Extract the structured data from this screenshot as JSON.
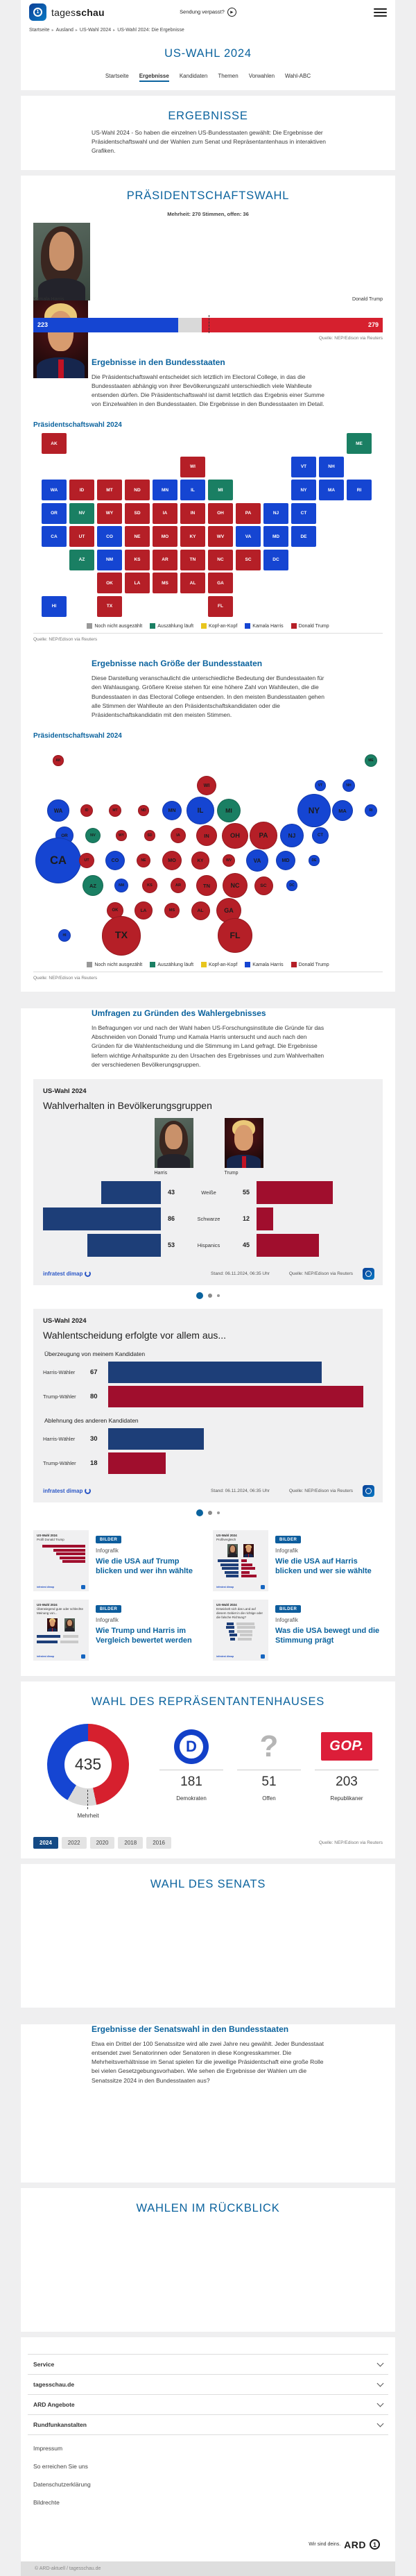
{
  "colors": {
    "accent_blue": "#0b639e",
    "dem": "#1545d2",
    "rep_map": "#b51f27",
    "rep_bright": "#d6202e",
    "open_gray": "#d9d9d9",
    "counting_green": "#1a7f63",
    "tossup_yellow": "#e8c51d",
    "legend_gray": "#999999",
    "info_dem": "#1d3e78",
    "info_rep": "#a00e2d",
    "thumb_gray": "#c9c9c9"
  },
  "header": {
    "brand_regular": "tages",
    "brand_bold": "schau",
    "missed_show": "Sendung verpasst?",
    "breadcrumb": [
      "Startseite",
      "Ausland",
      "US-Wahl 2024",
      "US-Wahl 2024: Die Ergebnisse"
    ],
    "page_title": "US-WAHL 2024",
    "tabs": [
      {
        "label": "Startseite",
        "active": false
      },
      {
        "label": "Ergebnisse",
        "active": true
      },
      {
        "label": "Kandidaten",
        "active": false
      },
      {
        "label": "Themen",
        "active": false
      },
      {
        "label": "Vorwahlen",
        "active": false
      },
      {
        "label": "Wahl-ABC",
        "active": false
      }
    ]
  },
  "ergebnisse": {
    "title": "ERGEBNISSE",
    "intro": "US-Wahl 2024 - So haben die einzelnen US-Bundesstaaten gewählt: Die Ergebnisse der Präsidentschaftswahl und der Wahlen zum Senat und Repräsentantenhaus in interaktiven Grafiken."
  },
  "praesidentschaft": {
    "title": "PRÄSIDENTSCHAFTSWAHL",
    "majority_note": "Mehrheit: 270 Stimmen, offen: 36",
    "total": 538,
    "majority": 270,
    "open": 36,
    "harris": {
      "name": "Kamala Harris",
      "votes": 223
    },
    "trump": {
      "name": "Donald Trump",
      "votes": 279
    },
    "source": "Quelle: NEP/Edison via Reuters",
    "states_heading": "Ergebnisse in den Bundesstaaten",
    "states_text": "Die Präsidentschaftswahl entscheidet sich letztlich im Electoral College, in das die Bundesstaaten abhängig von ihrer Bevölkerungszahl unterschiedlich viele Wahlleute entsenden dürfen. Die Präsidentschaftswahl ist damit letztlich das Ergebnis einer Summe von Einzelwahlen in den Bundesstaaten. Die Ergebnisse in den Bundesstaaten im Detail.",
    "map_title": "Präsidentschaftswahl 2024",
    "size_heading": "Ergebnisse nach Größe der Bundesstaaten",
    "size_text": "Diese Darstellung veranschaulicht die unterschiedliche Bedeutung der Bundesstaaten für den Wahlausgang. Größere Kreise stehen für eine höhere Zahl von Wahlleuten, die die Bundesstaaten in das Electoral College entsenden. In den meisten Bundesstaaten gehen alle Stimmen der Wahlleute an den Präsidentschaftskandidaten oder die Präsidentschaftskandidatin mit den meisten Stimmen.",
    "bubble_title": "Präsidentschaftswahl 2024",
    "legend": [
      {
        "label": "Noch nicht ausgezählt",
        "key": "legend_gray"
      },
      {
        "label": "Auszählung läuft",
        "key": "counting_green"
      },
      {
        "label": "Kopf-an-Kopf",
        "key": "tossup_yellow"
      },
      {
        "label": "Kamala Harris",
        "key": "dem"
      },
      {
        "label": "Donald Trump",
        "key": "rep_map"
      }
    ]
  },
  "states": [
    {
      "abbr": "AK",
      "ev": 3,
      "w": "rep",
      "c": 0,
      "r": 0
    },
    {
      "abbr": "ME",
      "ev": 4,
      "w": "count",
      "c": 11,
      "r": 0
    },
    {
      "abbr": "WI",
      "ev": 10,
      "w": "rep",
      "c": 5,
      "r": 1
    },
    {
      "abbr": "VT",
      "ev": 3,
      "w": "dem",
      "c": 9,
      "r": 1
    },
    {
      "abbr": "NH",
      "ev": 4,
      "w": "dem",
      "c": 10,
      "r": 1
    },
    {
      "abbr": "WA",
      "ev": 12,
      "w": "dem",
      "c": 0,
      "r": 2
    },
    {
      "abbr": "ID",
      "ev": 4,
      "w": "rep",
      "c": 1,
      "r": 2
    },
    {
      "abbr": "MT",
      "ev": 4,
      "w": "rep",
      "c": 2,
      "r": 2
    },
    {
      "abbr": "ND",
      "ev": 3,
      "w": "rep",
      "c": 3,
      "r": 2
    },
    {
      "abbr": "MN",
      "ev": 10,
      "w": "dem",
      "c": 4,
      "r": 2
    },
    {
      "abbr": "IL",
      "ev": 19,
      "w": "dem",
      "c": 5,
      "r": 2
    },
    {
      "abbr": "MI",
      "ev": 15,
      "w": "count",
      "c": 6,
      "r": 2
    },
    {
      "abbr": "NY",
      "ev": 28,
      "w": "dem",
      "c": 9,
      "r": 2
    },
    {
      "abbr": "MA",
      "ev": 11,
      "w": "dem",
      "c": 10,
      "r": 2
    },
    {
      "abbr": "RI",
      "ev": 4,
      "w": "dem",
      "c": 11,
      "r": 2
    },
    {
      "abbr": "OR",
      "ev": 8,
      "w": "dem",
      "c": 0,
      "r": 3
    },
    {
      "abbr": "NV",
      "ev": 6,
      "w": "count",
      "c": 1,
      "r": 3
    },
    {
      "abbr": "WY",
      "ev": 3,
      "w": "rep",
      "c": 2,
      "r": 3
    },
    {
      "abbr": "SD",
      "ev": 3,
      "w": "rep",
      "c": 3,
      "r": 3
    },
    {
      "abbr": "IA",
      "ev": 6,
      "w": "rep",
      "c": 4,
      "r": 3
    },
    {
      "abbr": "IN",
      "ev": 11,
      "w": "rep",
      "c": 5,
      "r": 3
    },
    {
      "abbr": "OH",
      "ev": 17,
      "w": "rep",
      "c": 6,
      "r": 3
    },
    {
      "abbr": "PA",
      "ev": 19,
      "w": "rep",
      "c": 7,
      "r": 3
    },
    {
      "abbr": "NJ",
      "ev": 14,
      "w": "dem",
      "c": 8,
      "r": 3
    },
    {
      "abbr": "CT",
      "ev": 7,
      "w": "dem",
      "c": 9,
      "r": 3
    },
    {
      "abbr": "CA",
      "ev": 54,
      "w": "dem",
      "c": 0,
      "r": 4
    },
    {
      "abbr": "UT",
      "ev": 6,
      "w": "rep",
      "c": 1,
      "r": 4
    },
    {
      "abbr": "CO",
      "ev": 10,
      "w": "dem",
      "c": 2,
      "r": 4
    },
    {
      "abbr": "NE",
      "ev": 5,
      "w": "rep",
      "c": 3,
      "r": 4
    },
    {
      "abbr": "MO",
      "ev": 10,
      "w": "rep",
      "c": 4,
      "r": 4
    },
    {
      "abbr": "KY",
      "ev": 8,
      "w": "rep",
      "c": 5,
      "r": 4
    },
    {
      "abbr": "WV",
      "ev": 4,
      "w": "rep",
      "c": 6,
      "r": 4
    },
    {
      "abbr": "VA",
      "ev": 13,
      "w": "dem",
      "c": 7,
      "r": 4
    },
    {
      "abbr": "MD",
      "ev": 10,
      "w": "dem",
      "c": 8,
      "r": 4
    },
    {
      "abbr": "DE",
      "ev": 3,
      "w": "dem",
      "c": 9,
      "r": 4
    },
    {
      "abbr": "AZ",
      "ev": 11,
      "w": "count",
      "c": 1,
      "r": 5
    },
    {
      "abbr": "NM",
      "ev": 5,
      "w": "dem",
      "c": 2,
      "r": 5
    },
    {
      "abbr": "KS",
      "ev": 6,
      "w": "rep",
      "c": 3,
      "r": 5
    },
    {
      "abbr": "AR",
      "ev": 6,
      "w": "rep",
      "c": 4,
      "r": 5
    },
    {
      "abbr": "TN",
      "ev": 11,
      "w": "rep",
      "c": 5,
      "r": 5
    },
    {
      "abbr": "NC",
      "ev": 16,
      "w": "rep",
      "c": 6,
      "r": 5
    },
    {
      "abbr": "SC",
      "ev": 9,
      "w": "rep",
      "c": 7,
      "r": 5
    },
    {
      "abbr": "DC",
      "ev": 3,
      "w": "dem",
      "c": 8,
      "r": 5
    },
    {
      "abbr": "OK",
      "ev": 7,
      "w": "rep",
      "c": 2,
      "r": 6
    },
    {
      "abbr": "LA",
      "ev": 8,
      "w": "rep",
      "c": 3,
      "r": 6
    },
    {
      "abbr": "MS",
      "ev": 6,
      "w": "rep",
      "c": 4,
      "r": 6
    },
    {
      "abbr": "AL",
      "ev": 9,
      "w": "rep",
      "c": 5,
      "r": 6
    },
    {
      "abbr": "GA",
      "ev": 16,
      "w": "rep",
      "c": 6,
      "r": 6
    },
    {
      "abbr": "HI",
      "ev": 4,
      "w": "dem",
      "c": 0,
      "r": 7
    },
    {
      "abbr": "TX",
      "ev": 40,
      "w": "rep",
      "c": 2,
      "r": 7
    },
    {
      "abbr": "FL",
      "ev": 30,
      "w": "rep",
      "c": 6,
      "r": 7
    }
  ],
  "umfragen": {
    "heading": "Umfragen zu Gründen des Wahlergebnisses",
    "text": "In Befragungen vor und nach der Wahl haben US-Forschungsinstitute die Gründe für das Abschneiden von Donald Trump und Kamala Harris untersucht und auch nach den Gründen für die Wahlentscheidung und die Stimmung im Land gefragt. Die Ergebnisse liefern wichtige Anhaltspunkte zu den Ursachen des Ergebnisses und zum Wahlverhalten der verschiedenen Bevölkerungsgruppen."
  },
  "infographics": {
    "footer": {
      "brand": "infratest dimap",
      "stand": "Stand:  06.11.2024, 06:35 Uhr",
      "source": "Quelle: NEP/Edison via Reuters"
    },
    "card1": {
      "kicker": "US-Wahl 2024",
      "title": "Wahlverhalten in Bevölkerungsgruppen",
      "harris_label": "Harris",
      "trump_label": "Trump",
      "rows": [
        {
          "group": "Weiße",
          "harris": 43,
          "trump": 55
        },
        {
          "group": "Schwarze",
          "harris": 86,
          "trump": 12
        },
        {
          "group": "Hispanics",
          "harris": 53,
          "trump": 45
        }
      ]
    },
    "card2": {
      "kicker": "US-Wahl 2024",
      "title": "Wahlentscheidung erfolgte vor allem aus...",
      "groups": [
        {
          "label": "Überzeugung von meinem Kandidaten",
          "rows": [
            {
              "label": "Harris-Wähler",
              "value": 67,
              "side": "dem"
            },
            {
              "label": "Trump-Wähler",
              "value": 80,
              "side": "rep"
            }
          ]
        },
        {
          "label": "Ablehnung des anderen Kandidaten",
          "rows": [
            {
              "label": "Harris-Wähler",
              "value": 30,
              "side": "dem"
            },
            {
              "label": "Trump-Wähler",
              "value": 18,
              "side": "rep"
            }
          ]
        }
      ]
    }
  },
  "teasers": [
    {
      "badge": "BILDER",
      "kicker": "Infografik",
      "title": "Wie die USA auf Trump blicken und wer ihn wählte",
      "variant": "trump-profil",
      "thumb_kicker": "US-Wahl 2024",
      "thumb_title": "Profil Donald Trump"
    },
    {
      "badge": "BILDER",
      "kicker": "Infografik",
      "title": "Wie die USA auf Harris blicken und wer sie wählte",
      "variant": "profilvergleich",
      "thumb_kicker": "US-Wahl 2024",
      "thumb_title": "Profilvergleich"
    },
    {
      "badge": "BILDER",
      "kicker": "Infografik",
      "title": "Wie Trump und Harris im Vergleich bewertet werden",
      "variant": "meinung",
      "thumb_kicker": "US-Wahl 2024",
      "thumb_title": "Überwiegend gute oder schlechte Meinung von..."
    },
    {
      "badge": "BILDER",
      "kicker": "Infografik",
      "title": "Was die USA bewegt und die Stimmung prägt",
      "variant": "richtung",
      "thumb_kicker": "US-Wahl 2024",
      "thumb_title": "Entwickelt sich das Land auf diesem Gebiet in die richtige oder die falsche Richtung?"
    }
  ],
  "house": {
    "title": "WAHL DES REPRÄSENTANTENHAUSES",
    "total": "435",
    "total_num": 435,
    "center_label": "Mehrheit",
    "parties": [
      {
        "name": "Demokraten",
        "seats": 181,
        "logo": "dem"
      },
      {
        "name": "Offen",
        "seats": 51,
        "logo": "open"
      },
      {
        "name": "Republikaner",
        "seats": 203,
        "logo": "gop"
      }
    ],
    "gop_text": "GOP",
    "question_mark": "?",
    "years": [
      {
        "label": "2024",
        "active": true
      },
      {
        "label": "2022",
        "active": false
      },
      {
        "label": "2020",
        "active": false
      },
      {
        "label": "2018",
        "active": false
      },
      {
        "label": "2016",
        "active": false
      }
    ],
    "source": "Quelle: NEP/Edison via Reuters"
  },
  "senat": {
    "title": "WAHL DES SENATS"
  },
  "senatswahl": {
    "heading": "Ergebnisse der Senatswahl in den Bundesstaaten",
    "text": "Etwa ein Drittel der 100 Senatssitze wird alle zwei Jahre neu gewählt. Jeder Bundesstaat entsendet zwei Senatorinnen oder Senatoren in diese Kongresskammer. Die Mehrheitsverhältnisse im Senat spielen für die jeweilige Präsidentschaft eine große Rolle bei vielen Gesetzgebungsvorhaben. Wie sehen die Ergebnisse der Wahlen um die Senatssitze 2024 in den Bundesstaaten aus?"
  },
  "rueckblick": {
    "title": "WAHLEN IM RÜCKBLICK"
  },
  "footer": {
    "accordions": [
      "Service",
      "tagesschau.de",
      "ARD Angebote",
      "Rundfunkanstalten"
    ],
    "links": [
      "Impressum",
      "So erreichen Sie uns",
      "Datenschutzerklärung",
      "Bildrechte"
    ],
    "slogan": "Wir sind deins.",
    "ard": "ARD",
    "ard_one": "1",
    "copyright": "© ARD-aktuell / tagesschau.de"
  }
}
